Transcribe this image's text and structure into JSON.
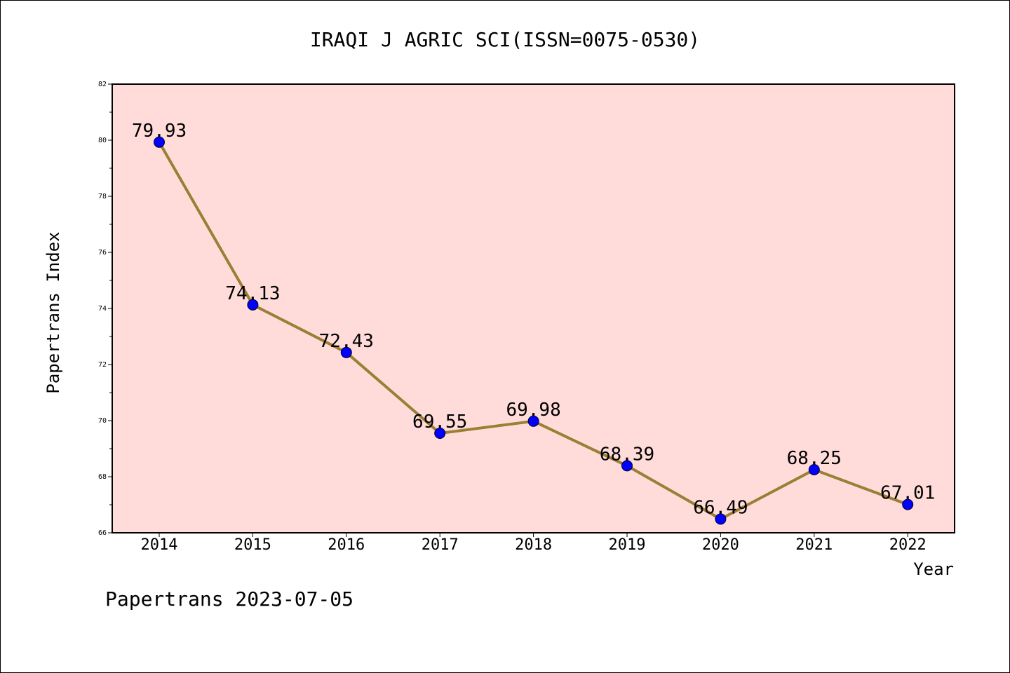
{
  "chart_data": {
    "type": "line",
    "title": "IRAQI J AGRIC SCI(ISSN=0075-0530)",
    "xlabel": "Year",
    "ylabel": "Papertrans Index",
    "categories": [
      "2014",
      "2015",
      "2016",
      "2017",
      "2018",
      "2019",
      "2020",
      "2021",
      "2022"
    ],
    "series": [
      {
        "values": [
          79.93,
          74.13,
          72.43,
          69.55,
          69.98,
          68.39,
          66.49,
          68.25,
          67.01
        ],
        "labels": [
          "79.93",
          "74.13",
          "72.43",
          "69.55",
          "69.98",
          "68.39",
          "66.49",
          "68.25",
          "67.01"
        ]
      }
    ],
    "ylim": [
      66,
      82
    ],
    "yticks": [
      "66",
      "68",
      "70",
      "72",
      "74",
      "76",
      "78",
      "80",
      "82"
    ],
    "grid": false,
    "colors": {
      "plot_background": "#FFDCDA",
      "line": "#9A7F35",
      "marker": "#0000FF"
    }
  },
  "footer": {
    "text": "Papertrans 2023-07-05"
  }
}
